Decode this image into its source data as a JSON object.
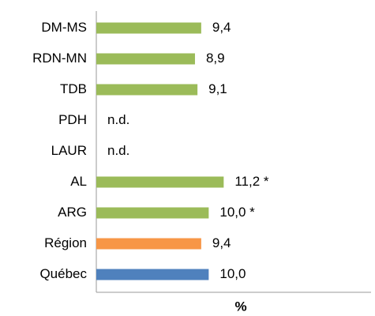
{
  "chart_data": {
    "type": "hbar",
    "categories": [
      "DM-MS",
      "RDN-MN",
      "TDB",
      "PDH",
      "LAUR",
      "AL",
      "ARG",
      "Région",
      "Québec"
    ],
    "values": [
      9.4,
      8.9,
      9.1,
      null,
      null,
      11.2,
      10.0,
      9.4,
      10.0
    ],
    "value_labels": [
      "9,4",
      "8,9",
      "9,1",
      "n.d.",
      "n.d.",
      "11,2 *",
      "10,0 *",
      "9,4",
      "10,0"
    ],
    "colors": [
      "#9bbb59",
      "#9bbb59",
      "#9bbb59",
      "#9bbb59",
      "#9bbb59",
      "#9bbb59",
      "#9bbb59",
      "#f79646",
      "#4f81bd"
    ],
    "xlabel": "%",
    "xlim": [
      1,
      23
    ]
  }
}
